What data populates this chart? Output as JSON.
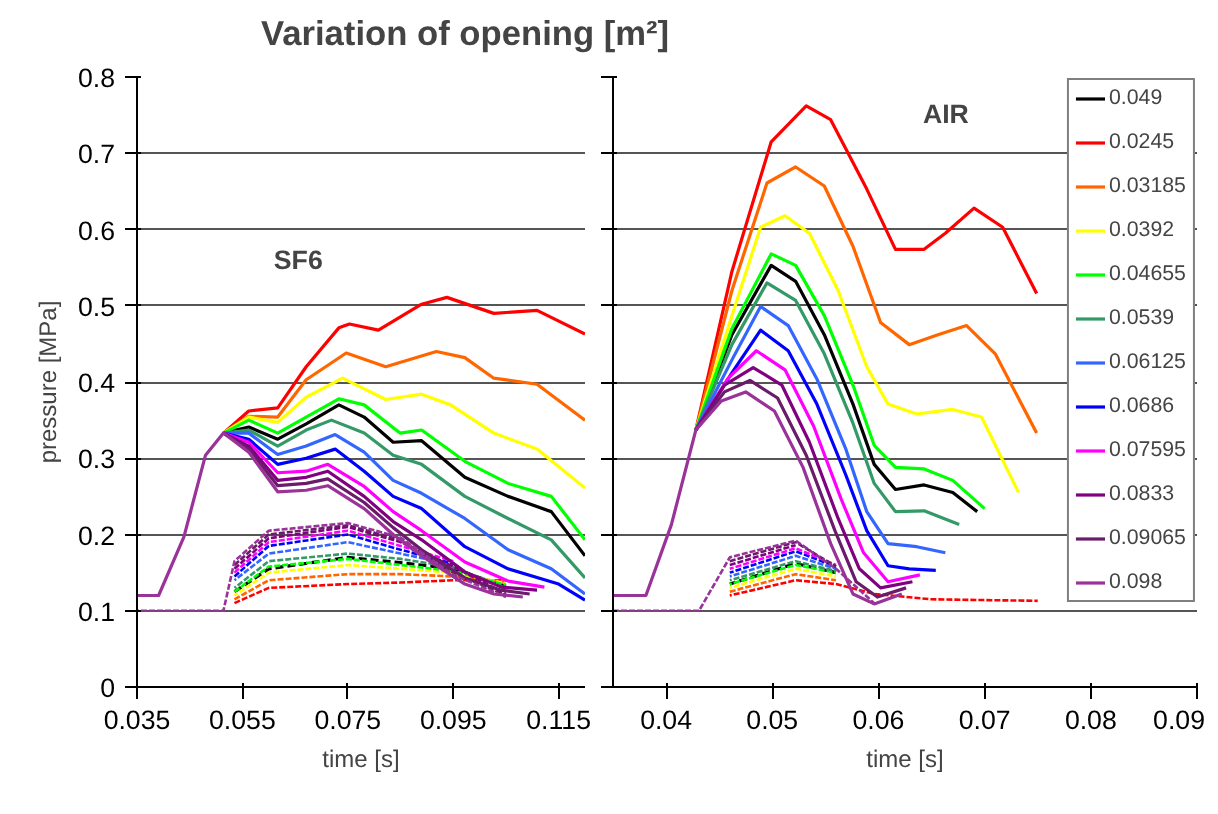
{
  "chart_data": [
    {
      "type": "line",
      "title": "Variation of opening [m²]",
      "xlabel": "time [s]",
      "ylabel": "pressure [MPa]",
      "annotations": [
        "SF6"
      ],
      "xlim": [
        0.035,
        0.12
      ],
      "xticks": [
        0.035,
        0.055,
        0.075,
        0.095,
        0.115
      ],
      "ylim": [
        0,
        0.8
      ],
      "yticks": [
        0,
        0.1,
        0.2,
        0.3,
        0.4,
        0.5,
        0.6,
        0.7,
        0.8
      ],
      "grid": "y",
      "legend": false,
      "series": [
        {
          "color": "#000000",
          "line_style": "solid",
          "x": [
            0.0514,
            0.0562,
            0.0617,
            0.0671,
            0.0733,
            0.0781,
            0.0836,
            0.089,
            0.0972,
            0.1054,
            0.1136,
            0.12
          ],
          "values": [
            0.333,
            0.341,
            0.325,
            0.345,
            0.37,
            0.354,
            0.321,
            0.323,
            0.275,
            0.25,
            0.23,
            0.172
          ]
        },
        {
          "color": "#000000",
          "line_style": "dashed",
          "x": [
            0.0535,
            0.06,
            0.075,
            0.085,
            0.095,
            0.105
          ],
          "values": [
            0.125,
            0.155,
            0.17,
            0.163,
            0.155,
            0.132
          ]
        },
        {
          "color": "#ff0000",
          "line_style": "solid",
          "x": [
            0.0514,
            0.0562,
            0.0617,
            0.0671,
            0.0733,
            0.0753,
            0.0808,
            0.089,
            0.0938,
            0.1027,
            0.1109,
            0.12
          ],
          "values": [
            0.333,
            0.362,
            0.366,
            0.42,
            0.471,
            0.476,
            0.468,
            0.502,
            0.511,
            0.49,
            0.494,
            0.463
          ]
        },
        {
          "color": "#ff0000",
          "line_style": "dotted",
          "x": [
            0.0535,
            0.06,
            0.075,
            0.085,
            0.095,
            0.105
          ],
          "values": [
            0.11,
            0.13,
            0.135,
            0.137,
            0.14,
            0.14
          ]
        },
        {
          "color": "#ff6600",
          "line_style": "solid",
          "x": [
            0.0514,
            0.0562,
            0.0617,
            0.0671,
            0.0747,
            0.0822,
            0.0918,
            0.0972,
            0.1027,
            0.1109,
            0.12
          ],
          "values": [
            0.333,
            0.355,
            0.354,
            0.403,
            0.438,
            0.42,
            0.44,
            0.432,
            0.405,
            0.397,
            0.35
          ]
        },
        {
          "color": "#ff6600",
          "line_style": "dotted",
          "x": [
            0.0535,
            0.06,
            0.075,
            0.085,
            0.095,
            0.105
          ],
          "values": [
            0.115,
            0.14,
            0.148,
            0.148,
            0.145,
            0.138
          ]
        },
        {
          "color": "#ffff00",
          "line_style": "solid",
          "x": [
            0.0514,
            0.0562,
            0.0617,
            0.0671,
            0.074,
            0.0822,
            0.089,
            0.0945,
            0.1027,
            0.1109,
            0.12
          ],
          "values": [
            0.333,
            0.354,
            0.347,
            0.38,
            0.405,
            0.377,
            0.384,
            0.37,
            0.333,
            0.312,
            0.261
          ]
        },
        {
          "color": "#ffff00",
          "line_style": "dotted",
          "x": [
            0.0535,
            0.06,
            0.075,
            0.085,
            0.095,
            0.105
          ],
          "values": [
            0.12,
            0.15,
            0.16,
            0.155,
            0.15,
            0.136
          ]
        },
        {
          "color": "#00ff00",
          "line_style": "solid",
          "x": [
            0.0514,
            0.0562,
            0.0617,
            0.0671,
            0.0733,
            0.0781,
            0.0849,
            0.089,
            0.0972,
            0.1054,
            0.1136,
            0.12
          ],
          "values": [
            0.333,
            0.35,
            0.333,
            0.354,
            0.378,
            0.37,
            0.333,
            0.337,
            0.296,
            0.267,
            0.25,
            0.193
          ]
        },
        {
          "color": "#00ff00",
          "line_style": "dotted",
          "x": [
            0.0535,
            0.06,
            0.075,
            0.085,
            0.095,
            0.105
          ],
          "values": [
            0.125,
            0.158,
            0.168,
            0.16,
            0.152,
            0.134
          ]
        },
        {
          "color": "#339966",
          "line_style": "solid",
          "x": [
            0.0514,
            0.0562,
            0.0617,
            0.0671,
            0.0719,
            0.0781,
            0.0836,
            0.089,
            0.0972,
            0.1054,
            0.1136,
            0.12
          ],
          "values": [
            0.333,
            0.337,
            0.316,
            0.337,
            0.35,
            0.333,
            0.304,
            0.292,
            0.25,
            0.221,
            0.193,
            0.143
          ]
        },
        {
          "color": "#339966",
          "line_style": "dotted",
          "x": [
            0.0535,
            0.06,
            0.075,
            0.085,
            0.095,
            0.105
          ],
          "values": [
            0.13,
            0.165,
            0.175,
            0.168,
            0.157,
            0.13
          ]
        },
        {
          "color": "#3366ff",
          "line_style": "solid",
          "x": [
            0.0514,
            0.0562,
            0.0617,
            0.0671,
            0.0726,
            0.0781,
            0.0836,
            0.089,
            0.0972,
            0.1054,
            0.1136,
            0.12
          ],
          "values": [
            0.333,
            0.333,
            0.305,
            0.316,
            0.331,
            0.308,
            0.271,
            0.254,
            0.221,
            0.18,
            0.155,
            0.122
          ]
        },
        {
          "color": "#3366ff",
          "line_style": "dotted",
          "x": [
            0.0535,
            0.06,
            0.075,
            0.085,
            0.095
          ],
          "values": [
            0.14,
            0.175,
            0.19,
            0.175,
            0.16
          ]
        },
        {
          "color": "#0000ff",
          "line_style": "solid",
          "x": [
            0.0514,
            0.0562,
            0.0617,
            0.0671,
            0.0726,
            0.0781,
            0.0836,
            0.089,
            0.0972,
            0.1054,
            0.115,
            0.12
          ],
          "values": [
            0.333,
            0.325,
            0.292,
            0.3,
            0.312,
            0.283,
            0.25,
            0.234,
            0.184,
            0.155,
            0.135,
            0.114
          ]
        },
        {
          "color": "#0000ff",
          "line_style": "dotted",
          "x": [
            0.0535,
            0.06,
            0.075,
            0.085,
            0.095
          ],
          "values": [
            0.145,
            0.185,
            0.2,
            0.18,
            0.162
          ]
        },
        {
          "color": "#ff00ff",
          "line_style": "solid",
          "x": [
            0.0514,
            0.0562,
            0.0617,
            0.0671,
            0.0712,
            0.0781,
            0.0836,
            0.089,
            0.0972,
            0.1054,
            0.1123
          ],
          "values": [
            0.333,
            0.321,
            0.281,
            0.283,
            0.292,
            0.263,
            0.23,
            0.205,
            0.164,
            0.139,
            0.131
          ]
        },
        {
          "color": "#ff00ff",
          "line_style": "dotted",
          "x": [
            0.0535,
            0.06,
            0.075,
            0.085,
            0.095
          ],
          "values": [
            0.15,
            0.19,
            0.205,
            0.185,
            0.165
          ]
        },
        {
          "color": "#800080",
          "line_style": "solid",
          "x": [
            0.0514,
            0.0562,
            0.0617,
            0.0671,
            0.0712,
            0.0781,
            0.0836,
            0.089,
            0.0972,
            0.1041,
            0.1109
          ],
          "values": [
            0.333,
            0.316,
            0.271,
            0.275,
            0.283,
            0.25,
            0.217,
            0.193,
            0.151,
            0.131,
            0.127
          ]
        },
        {
          "color": "#800080",
          "line_style": "dotted",
          "x": [
            0.0535,
            0.06,
            0.075,
            0.085,
            0.095,
            0.105
          ],
          "values": [
            0.155,
            0.195,
            0.21,
            0.19,
            0.158,
            0.122
          ]
        },
        {
          "color": "#6a1b6a",
          "line_style": "solid",
          "x": [
            0.0514,
            0.0562,
            0.0617,
            0.0671,
            0.0712,
            0.0781,
            0.0836,
            0.089,
            0.0972,
            0.1041,
            0.1095
          ],
          "values": [
            0.333,
            0.312,
            0.264,
            0.267,
            0.273,
            0.242,
            0.209,
            0.18,
            0.143,
            0.127,
            0.122
          ]
        },
        {
          "color": "#6a1b6a",
          "line_style": "dotted",
          "x": [
            0.0535,
            0.06,
            0.075,
            0.085,
            0.095,
            0.105
          ],
          "values": [
            0.16,
            0.2,
            0.212,
            0.193,
            0.15,
            0.12
          ]
        },
        {
          "color": "#993399",
          "line_style": "solid",
          "x": [
            0.035,
            0.0391,
            0.0439,
            0.048,
            0.0514,
            0.0562,
            0.0617,
            0.0671,
            0.0712,
            0.0781,
            0.0836,
            0.089,
            0.0972,
            0.1027,
            0.1082
          ],
          "values": [
            0.12,
            0.12,
            0.197,
            0.304,
            0.333,
            0.308,
            0.256,
            0.258,
            0.264,
            0.234,
            0.2,
            0.172,
            0.135,
            0.122,
            0.118
          ]
        },
        {
          "color": "#993399",
          "line_style": "dotted",
          "x": [
            0.035,
            0.0514,
            0.0535,
            0.06,
            0.075,
            0.085,
            0.095,
            0.105
          ],
          "values": [
            0.1,
            0.1,
            0.165,
            0.205,
            0.215,
            0.196,
            0.147,
            0.118
          ]
        }
      ]
    },
    {
      "type": "line",
      "xlabel": "time [s]",
      "annotations": [
        "AIR"
      ],
      "xlim": [
        0.035,
        0.09
      ],
      "xticks": [
        0.04,
        0.05,
        0.06,
        0.07,
        0.08,
        0.09
      ],
      "ylim": [
        0,
        0.8
      ],
      "yticks": [
        0,
        0.1,
        0.2,
        0.3,
        0.4,
        0.5,
        0.6,
        0.7,
        0.8
      ],
      "tick_labels": "x",
      "grid": "y",
      "legend": "top right",
      "series": [
        {
          "name": "0.049",
          "color": "#000000",
          "line_style": "solid",
          "x": [
            0.0428,
            0.0462,
            0.0499,
            0.0522,
            0.0549,
            0.0576,
            0.0596,
            0.0616,
            0.0643,
            0.067,
            0.0693
          ],
          "values": [
            0.337,
            0.462,
            0.553,
            0.532,
            0.462,
            0.371,
            0.292,
            0.259,
            0.265,
            0.255,
            0.23
          ]
        },
        {
          "color": "#000000",
          "line_style": "dashed",
          "x": [
            0.046,
            0.0522,
            0.056
          ],
          "values": [
            0.135,
            0.162,
            0.15
          ]
        },
        {
          "name": "0.0245",
          "color": "#ff0000",
          "line_style": "solid",
          "x": [
            0.0428,
            0.0462,
            0.0499,
            0.0532,
            0.0555,
            0.0589,
            0.0616,
            0.0643,
            0.0663,
            0.069,
            0.0717,
            0.0749
          ],
          "values": [
            0.337,
            0.545,
            0.715,
            0.762,
            0.744,
            0.653,
            0.574,
            0.574,
            0.595,
            0.628,
            0.603,
            0.516
          ]
        },
        {
          "color": "#ff0000",
          "line_style": "dotted",
          "x": [
            0.046,
            0.0522,
            0.056,
            0.0596,
            0.065,
            0.075
          ],
          "values": [
            0.12,
            0.14,
            0.135,
            0.122,
            0.115,
            0.113
          ]
        },
        {
          "name": "0.03185",
          "color": "#ff6600",
          "line_style": "solid",
          "x": [
            0.0428,
            0.0462,
            0.0495,
            0.0522,
            0.0549,
            0.0576,
            0.0602,
            0.0629,
            0.0656,
            0.0683,
            0.071,
            0.0749
          ],
          "values": [
            0.337,
            0.52,
            0.661,
            0.682,
            0.657,
            0.578,
            0.478,
            0.449,
            0.462,
            0.474,
            0.437,
            0.333
          ]
        },
        {
          "color": "#ff6600",
          "line_style": "dotted",
          "x": [
            0.046,
            0.0522,
            0.056
          ],
          "values": [
            0.125,
            0.148,
            0.14
          ]
        },
        {
          "name": "0.0392",
          "color": "#ffff00",
          "line_style": "solid",
          "x": [
            0.0428,
            0.0462,
            0.0489,
            0.0512,
            0.0535,
            0.0562,
            0.0589,
            0.0609,
            0.0636,
            0.067,
            0.0697,
            0.0732
          ],
          "values": [
            0.337,
            0.487,
            0.603,
            0.618,
            0.595,
            0.52,
            0.42,
            0.371,
            0.358,
            0.364,
            0.354,
            0.255
          ]
        },
        {
          "color": "#ffff00",
          "line_style": "dotted",
          "x": [
            0.046,
            0.0522,
            0.056
          ],
          "values": [
            0.13,
            0.155,
            0.145
          ]
        },
        {
          "name": "0.04655",
          "color": "#00ff00",
          "line_style": "solid",
          "x": [
            0.0428,
            0.0462,
            0.0499,
            0.0522,
            0.0549,
            0.0576,
            0.0596,
            0.0616,
            0.0643,
            0.067,
            0.07
          ],
          "values": [
            0.337,
            0.47,
            0.568,
            0.553,
            0.487,
            0.396,
            0.317,
            0.288,
            0.286,
            0.271,
            0.234
          ]
        },
        {
          "color": "#00ff00",
          "line_style": "dotted",
          "x": [
            0.046,
            0.0522,
            0.056
          ],
          "values": [
            0.135,
            0.16,
            0.15
          ]
        },
        {
          "name": "0.0539",
          "color": "#339966",
          "line_style": "solid",
          "x": [
            0.0428,
            0.0462,
            0.0495,
            0.0522,
            0.0549,
            0.0576,
            0.0596,
            0.0616,
            0.0643,
            0.0676
          ],
          "values": [
            0.337,
            0.449,
            0.53,
            0.507,
            0.437,
            0.346,
            0.267,
            0.23,
            0.231,
            0.213
          ]
        },
        {
          "color": "#339966",
          "line_style": "dotted",
          "x": [
            0.046,
            0.0522,
            0.056
          ],
          "values": [
            0.14,
            0.165,
            0.152
          ]
        },
        {
          "name": "0.06125",
          "color": "#3366ff",
          "line_style": "solid",
          "x": [
            0.0428,
            0.0462,
            0.0489,
            0.0515,
            0.0542,
            0.0569,
            0.0589,
            0.0609,
            0.0636,
            0.0663
          ],
          "values": [
            0.337,
            0.429,
            0.499,
            0.474,
            0.404,
            0.313,
            0.23,
            0.188,
            0.184,
            0.176
          ]
        },
        {
          "color": "#3366ff",
          "line_style": "dotted",
          "x": [
            0.046,
            0.0522,
            0.056
          ],
          "values": [
            0.145,
            0.172,
            0.155
          ]
        },
        {
          "name": "0.0686",
          "color": "#0000ff",
          "line_style": "solid",
          "x": [
            0.0428,
            0.0462,
            0.0489,
            0.0515,
            0.0542,
            0.0569,
            0.0589,
            0.0609,
            0.0629,
            0.0654
          ],
          "values": [
            0.337,
            0.412,
            0.468,
            0.441,
            0.371,
            0.279,
            0.205,
            0.159,
            0.155,
            0.153
          ]
        },
        {
          "color": "#0000ff",
          "line_style": "dotted",
          "x": [
            0.046,
            0.0522,
            0.056
          ],
          "values": [
            0.15,
            0.178,
            0.158
          ]
        },
        {
          "name": "0.07595",
          "color": "#ff00ff",
          "line_style": "solid",
          "x": [
            0.0428,
            0.0458,
            0.0485,
            0.0512,
            0.0539,
            0.0565,
            0.0586,
            0.0609,
            0.0639
          ],
          "values": [
            0.337,
            0.404,
            0.441,
            0.416,
            0.342,
            0.246,
            0.176,
            0.138,
            0.147
          ]
        },
        {
          "color": "#ff00ff",
          "line_style": "dotted",
          "x": [
            0.046,
            0.0522,
            0.056
          ],
          "values": [
            0.155,
            0.182,
            0.16
          ]
        },
        {
          "name": "0.0833",
          "color": "#800080",
          "line_style": "solid",
          "x": [
            0.0428,
            0.0455,
            0.0482,
            0.0509,
            0.0535,
            0.0562,
            0.0582,
            0.0602,
            0.0632
          ],
          "values": [
            0.337,
            0.396,
            0.419,
            0.396,
            0.321,
            0.221,
            0.155,
            0.13,
            0.138
          ]
        },
        {
          "color": "#800080",
          "line_style": "dotted",
          "x": [
            0.046,
            0.0522
          ],
          "values": [
            0.16,
            0.186
          ]
        },
        {
          "name": "0.09065",
          "color": "#6a1b6a",
          "line_style": "solid",
          "x": [
            0.0428,
            0.0455,
            0.0479,
            0.0505,
            0.0532,
            0.0559,
            0.0579,
            0.0599,
            0.0626
          ],
          "values": [
            0.337,
            0.387,
            0.402,
            0.379,
            0.304,
            0.205,
            0.138,
            0.118,
            0.13
          ]
        },
        {
          "color": "#6a1b6a",
          "line_style": "dotted",
          "x": [
            0.046,
            0.0522,
            0.056
          ],
          "values": [
            0.165,
            0.19,
            0.158
          ]
        },
        {
          "name": "0.098",
          "color": "#993399",
          "line_style": "solid",
          "x": [
            0.035,
            0.0381,
            0.0405,
            0.0428,
            0.0452,
            0.0475,
            0.0502,
            0.0529,
            0.0555,
            0.0576,
            0.0596,
            0.0622
          ],
          "values": [
            0.12,
            0.12,
            0.213,
            0.337,
            0.375,
            0.387,
            0.362,
            0.288,
            0.188,
            0.122,
            0.109,
            0.122
          ]
        },
        {
          "color": "#993399",
          "line_style": "dotted",
          "x": [
            0.035,
            0.0431,
            0.046,
            0.0522,
            0.056,
            0.0596
          ],
          "values": [
            0.1,
            0.1,
            0.17,
            0.192,
            0.155,
            0.11
          ]
        }
      ]
    }
  ]
}
